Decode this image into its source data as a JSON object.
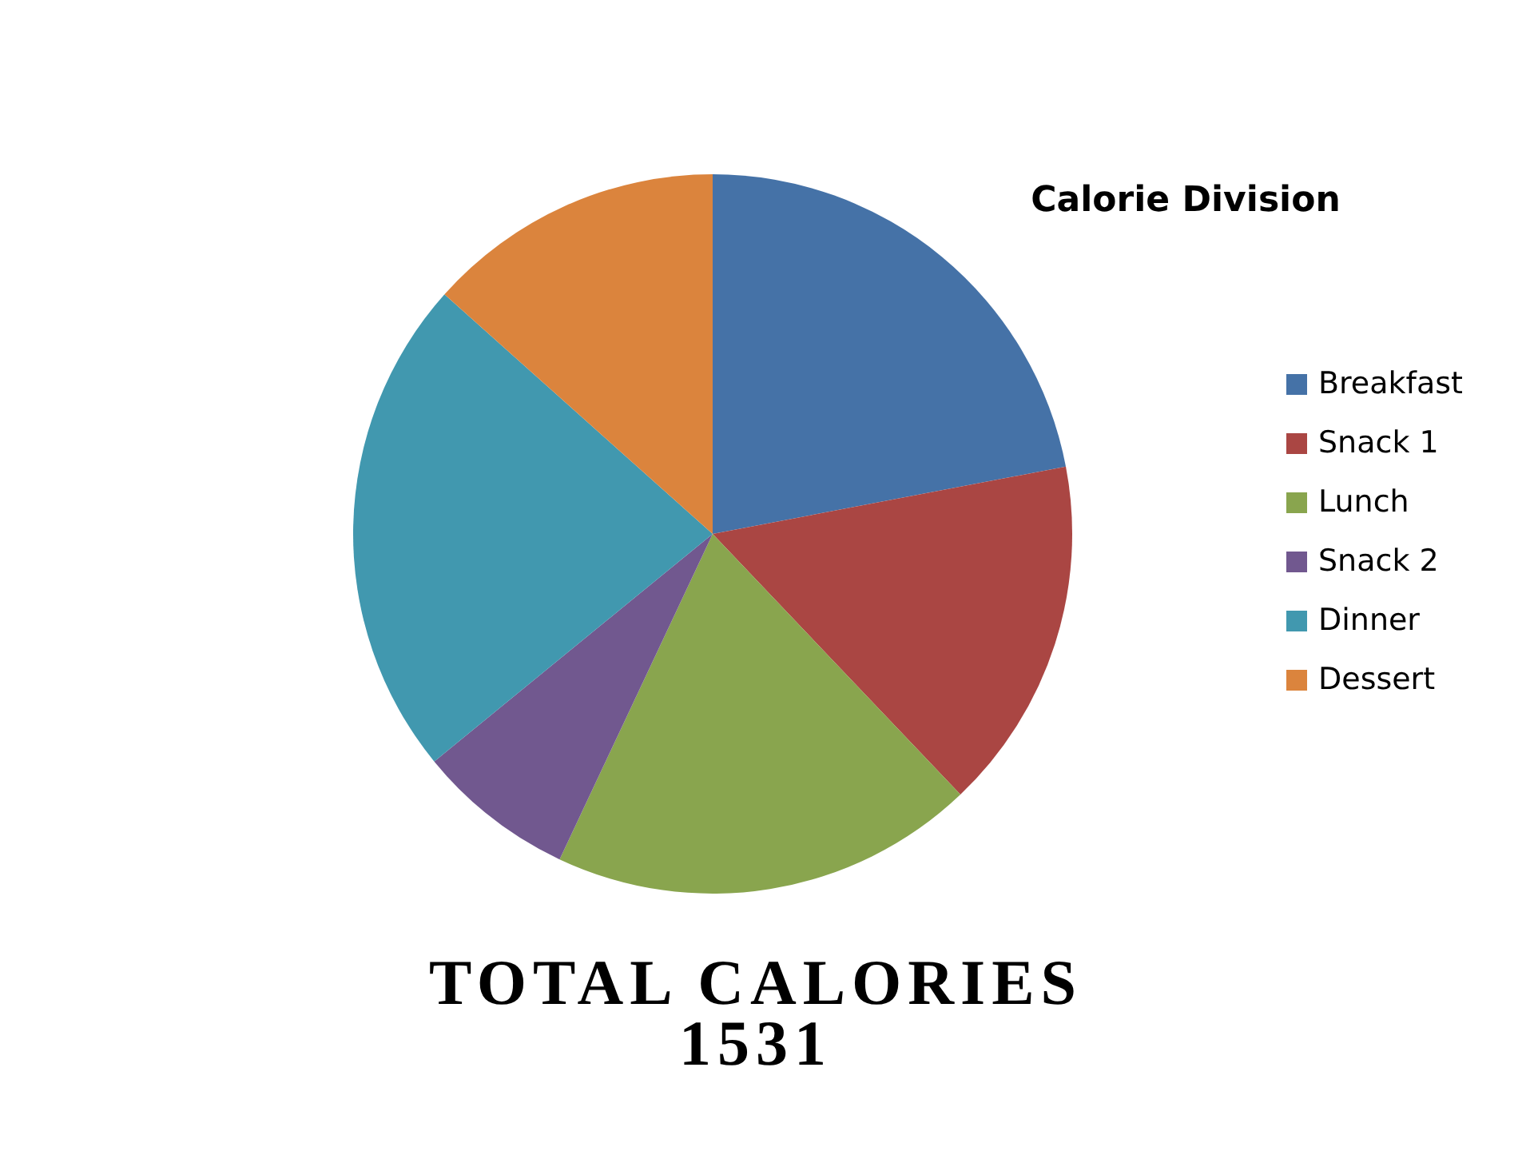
{
  "chart_data": {
    "type": "pie",
    "title": "Calorie Division",
    "categories": [
      "Breakfast",
      "Snack 1",
      "Lunch",
      "Snack 2",
      "Dinner",
      "Dessert"
    ],
    "values": [
      22.0,
      15.9,
      19.1,
      7.1,
      22.5,
      13.4
    ],
    "colors": [
      "#4572a7",
      "#aa4643",
      "#89a54e",
      "#71588f",
      "#4198af",
      "#db843d"
    ],
    "legend": "right",
    "annotations": [
      "TOTAL CALORIES\n1531"
    ]
  }
}
